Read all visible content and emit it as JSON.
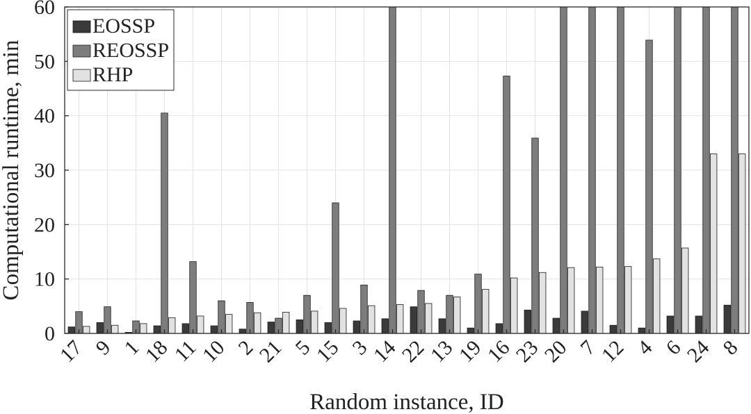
{
  "chart_data": {
    "type": "bar",
    "title": "",
    "xlabel": "Random instance, ID",
    "ylabel": "Computational runtime, min",
    "ylim": [
      0,
      60
    ],
    "yticks": [
      0,
      10,
      20,
      30,
      40,
      50,
      60
    ],
    "grid": true,
    "legend_position": "top-left",
    "categories": [
      "17",
      "9",
      "1",
      "18",
      "11",
      "10",
      "2",
      "21",
      "5",
      "15",
      "3",
      "14",
      "22",
      "13",
      "19",
      "16",
      "23",
      "20",
      "7",
      "12",
      "4",
      "6",
      "24",
      "8"
    ],
    "series": [
      {
        "name": "EOSSP",
        "color": "#3a3a3a",
        "values": [
          1.2,
          2.0,
          0.2,
          1.4,
          1.8,
          1.4,
          0.8,
          2.1,
          2.5,
          2.0,
          2.3,
          2.7,
          4.9,
          2.7,
          1.0,
          1.8,
          4.3,
          2.8,
          4.1,
          1.5,
          1.0,
          3.2,
          3.2,
          5.2
        ]
      },
      {
        "name": "REOSSP",
        "color": "#7d7d7d",
        "values": [
          4.0,
          4.9,
          2.3,
          40.5,
          13.2,
          6.0,
          5.7,
          2.8,
          7.0,
          24.0,
          8.9,
          60,
          7.9,
          7.0,
          10.9,
          47.3,
          35.9,
          60,
          60,
          60,
          53.9,
          60,
          60,
          60
        ]
      },
      {
        "name": "RHP",
        "color": "#e2e2e2",
        "values": [
          1.3,
          1.5,
          1.8,
          2.9,
          3.2,
          3.5,
          3.8,
          3.9,
          4.1,
          4.6,
          5.1,
          5.3,
          5.5,
          6.7,
          8.1,
          10.2,
          11.2,
          12.1,
          12.2,
          12.3,
          13.7,
          15.7,
          33.0,
          33.0
        ]
      }
    ]
  }
}
